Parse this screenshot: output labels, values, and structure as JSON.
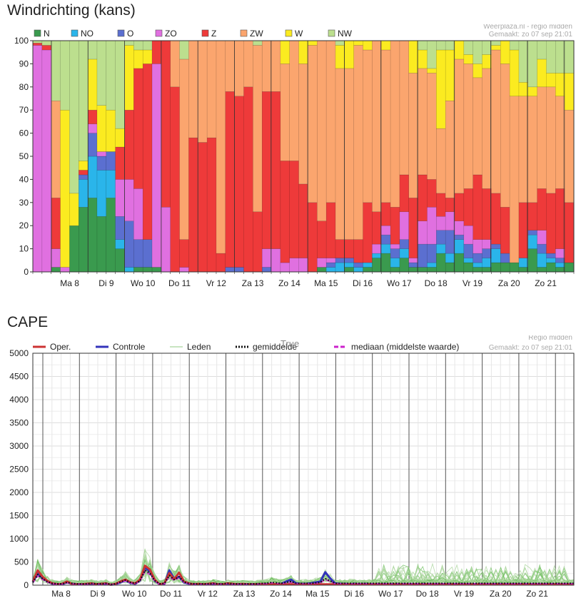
{
  "chart_data": [
    {
      "type": "bar",
      "stacked": true,
      "title": "Windrichting (kans)",
      "source": "Weerplaza.nl - regio midden",
      "made": "Gemaakt: zo 07 sep 21:01",
      "ylim": [
        0,
        100
      ],
      "yticks": [
        0,
        10,
        20,
        30,
        40,
        50,
        60,
        70,
        80,
        90,
        100
      ],
      "day_labels": [
        "Ma 8",
        "Di 9",
        "Wo 10",
        "Do 11",
        "Vr 12",
        "Za 13",
        "Zo 14",
        "Ma 15",
        "Di 16",
        "Wo 17",
        "Do 18",
        "Vr 19",
        "Za 20",
        "Zo 21"
      ],
      "legend_position": "top-left",
      "series": [
        {
          "name": "N",
          "color": "#3a9a4e"
        },
        {
          "name": "NO",
          "color": "#2ab5ea"
        },
        {
          "name": "O",
          "color": "#5b6fd0"
        },
        {
          "name": "ZO",
          "color": "#e070e0"
        },
        {
          "name": "Z",
          "color": "#ee3a3a"
        },
        {
          "name": "ZW",
          "color": "#fba56e"
        },
        {
          "name": "W",
          "color": "#fbeb20"
        },
        {
          "name": "NW",
          "color": "#bcdf8e"
        }
      ],
      "bars": [
        [
          0,
          0,
          0,
          98,
          1,
          0,
          0,
          1
        ],
        [
          0,
          0,
          0,
          96,
          2,
          0,
          0,
          2
        ],
        [
          2,
          0,
          0,
          8,
          22,
          42,
          0,
          26
        ],
        [
          0,
          0,
          0,
          2,
          0,
          0,
          68,
          30
        ],
        [
          20,
          0,
          0,
          0,
          0,
          0,
          14,
          66
        ],
        [
          28,
          12,
          2,
          0,
          2,
          0,
          4,
          52
        ],
        [
          32,
          18,
          10,
          4,
          6,
          0,
          22,
          8
        ],
        [
          24,
          20,
          6,
          2,
          0,
          0,
          20,
          28
        ],
        [
          32,
          12,
          8,
          0,
          0,
          0,
          18,
          30
        ],
        [
          10,
          4,
          10,
          16,
          14,
          0,
          8,
          38
        ],
        [
          0,
          2,
          20,
          18,
          30,
          0,
          28,
          2
        ],
        [
          2,
          0,
          12,
          22,
          52,
          0,
          8,
          4
        ],
        [
          2,
          0,
          12,
          0,
          76,
          0,
          6,
          4
        ],
        [
          2,
          0,
          0,
          88,
          10,
          0,
          0,
          0
        ],
        [
          0,
          0,
          0,
          28,
          72,
          0,
          0,
          0
        ],
        [
          0,
          0,
          0,
          0,
          80,
          20,
          0,
          0
        ],
        [
          0,
          0,
          0,
          2,
          12,
          78,
          0,
          8
        ],
        [
          0,
          0,
          0,
          0,
          58,
          42,
          0,
          0
        ],
        [
          0,
          0,
          0,
          0,
          56,
          44,
          0,
          0
        ],
        [
          0,
          0,
          0,
          0,
          58,
          42,
          0,
          0
        ],
        [
          0,
          0,
          0,
          0,
          8,
          92,
          0,
          0
        ],
        [
          0,
          0,
          2,
          0,
          76,
          22,
          0,
          0
        ],
        [
          0,
          0,
          2,
          0,
          74,
          24,
          0,
          0
        ],
        [
          0,
          0,
          0,
          0,
          80,
          20,
          0,
          0
        ],
        [
          0,
          0,
          0,
          0,
          26,
          72,
          0,
          2
        ],
        [
          0,
          0,
          2,
          8,
          68,
          22,
          0,
          0
        ],
        [
          0,
          0,
          0,
          10,
          68,
          22,
          0,
          0
        ],
        [
          0,
          0,
          0,
          4,
          44,
          42,
          10,
          0
        ],
        [
          0,
          0,
          0,
          6,
          42,
          52,
          0,
          0
        ],
        [
          0,
          0,
          0,
          6,
          32,
          52,
          10,
          0
        ],
        [
          0,
          0,
          0,
          0,
          30,
          68,
          2,
          0
        ],
        [
          2,
          0,
          0,
          4,
          16,
          78,
          0,
          0
        ],
        [
          0,
          2,
          2,
          2,
          24,
          70,
          0,
          0
        ],
        [
          0,
          4,
          2,
          0,
          8,
          74,
          10,
          2
        ],
        [
          2,
          2,
          2,
          0,
          8,
          74,
          12,
          0
        ],
        [
          0,
          2,
          2,
          0,
          10,
          84,
          2,
          0
        ],
        [
          2,
          2,
          0,
          0,
          26,
          66,
          4,
          0
        ],
        [
          6,
          2,
          0,
          4,
          14,
          74,
          0,
          0
        ],
        [
          8,
          4,
          4,
          4,
          10,
          66,
          4,
          0
        ],
        [
          2,
          4,
          4,
          2,
          16,
          72,
          0,
          0
        ],
        [
          6,
          4,
          4,
          12,
          16,
          58,
          0,
          0
        ],
        [
          2,
          0,
          2,
          2,
          26,
          54,
          14,
          0
        ],
        [
          2,
          0,
          10,
          10,
          20,
          46,
          8,
          4
        ],
        [
          2,
          2,
          8,
          16,
          12,
          46,
          2,
          12
        ],
        [
          8,
          4,
          6,
          6,
          10,
          28,
          34,
          4
        ],
        [
          4,
          4,
          10,
          8,
          6,
          42,
          22,
          4
        ],
        [
          8,
          6,
          2,
          6,
          12,
          58,
          8,
          0
        ],
        [
          4,
          2,
          6,
          8,
          16,
          54,
          4,
          6
        ],
        [
          2,
          2,
          4,
          6,
          28,
          42,
          6,
          10
        ],
        [
          2,
          4,
          4,
          4,
          22,
          52,
          6,
          6
        ],
        [
          4,
          6,
          2,
          0,
          22,
          62,
          2,
          2
        ],
        [
          4,
          0,
          4,
          0,
          20,
          62,
          10,
          0
        ],
        [
          4,
          0,
          0,
          0,
          0,
          72,
          20,
          4
        ],
        [
          2,
          4,
          0,
          0,
          24,
          46,
          6,
          18
        ],
        [
          10,
          6,
          2,
          0,
          12,
          46,
          4,
          20
        ],
        [
          2,
          6,
          4,
          6,
          18,
          44,
          12,
          8
        ],
        [
          4,
          2,
          2,
          0,
          26,
          46,
          6,
          14
        ],
        [
          2,
          2,
          2,
          4,
          26,
          40,
          10,
          14
        ],
        [
          4,
          0,
          0,
          0,
          26,
          40,
          16,
          14
        ]
      ]
    },
    {
      "type": "line",
      "title": "CAPE",
      "source": "Regio midden",
      "made": "Gemaakt: zo 07 sep 21:01",
      "ylim": [
        0,
        5000
      ],
      "yticks": [
        0,
        500,
        1000,
        1500,
        2000,
        2500,
        3000,
        3500,
        4000,
        4500,
        5000
      ],
      "day_labels": [
        "Ma 8",
        "Di 9",
        "Wo 10",
        "Do 11",
        "Vr 12",
        "Za 13",
        "Zo 14",
        "Ma 15",
        "Di 16",
        "Wo 17",
        "Do 18",
        "Vr 19",
        "Za 20",
        "Zo 21"
      ],
      "legend_position": "top",
      "legend": [
        {
          "name": "Oper.",
          "color": "#cc3333",
          "style": "solid"
        },
        {
          "name": "Controle",
          "color": "#3333bb",
          "style": "solid"
        },
        {
          "name": "Leden",
          "color": "#a8d49a",
          "style": "solid"
        },
        {
          "name": "gemiddelde",
          "color": "#111111",
          "style": "dotted"
        },
        {
          "name": "mediaan (middelste waarde)",
          "color": "#cc22cc",
          "style": "dashed"
        }
      ],
      "overlay_text": "True",
      "series": [
        {
          "name": "Oper.",
          "values": [
            80,
            320,
            180,
            90,
            40,
            20,
            30,
            80,
            30,
            20,
            20,
            30,
            40,
            20,
            30,
            40,
            10,
            30,
            80,
            120,
            60,
            40,
            120,
            420,
            340,
            120,
            20,
            40,
            260,
            130,
            270,
            80,
            40,
            20,
            30,
            20,
            30,
            40,
            20,
            20,
            40,
            30,
            20,
            30,
            20,
            20,
            20,
            30,
            20,
            30,
            20,
            20,
            20,
            20,
            20,
            20,
            20,
            20,
            20,
            20,
            20,
            20,
            20,
            20,
            20,
            20,
            20,
            20,
            20,
            20,
            20,
            20,
            20,
            20,
            20,
            20,
            20,
            20,
            20,
            20,
            20,
            20,
            20,
            20,
            20,
            20,
            20,
            20,
            20,
            20,
            20,
            20,
            20,
            20,
            20,
            20,
            20,
            20,
            20,
            20,
            20,
            20,
            20,
            20,
            20,
            20,
            20,
            20,
            20,
            20,
            20,
            20
          ]
        },
        {
          "name": "Controle",
          "values": [
            60,
            260,
            150,
            80,
            30,
            20,
            20,
            60,
            30,
            20,
            20,
            20,
            30,
            20,
            30,
            30,
            10,
            20,
            60,
            100,
            50,
            30,
            100,
            380,
            300,
            100,
            20,
            30,
            320,
            140,
            180,
            60,
            30,
            20,
            20,
            20,
            20,
            30,
            20,
            20,
            30,
            20,
            20,
            20,
            20,
            20,
            20,
            20,
            20,
            20,
            20,
            30,
            80,
            120,
            40,
            30,
            30,
            40,
            60,
            80,
            280,
            150,
            40,
            30,
            30,
            20,
            30,
            20,
            30,
            20,
            20,
            20,
            20,
            20,
            20,
            20,
            20,
            20,
            20,
            20,
            20,
            20,
            20,
            20,
            20,
            20,
            20,
            20,
            20,
            20,
            20,
            20,
            20,
            20,
            20,
            20,
            20,
            20,
            20,
            20,
            20,
            20,
            20,
            20,
            20,
            20,
            20,
            20,
            20,
            20,
            20,
            20
          ]
        },
        {
          "name": "gemiddelde",
          "values": [
            60,
            230,
            140,
            70,
            40,
            30,
            30,
            60,
            40,
            30,
            30,
            30,
            40,
            30,
            30,
            40,
            20,
            30,
            70,
            110,
            60,
            40,
            90,
            320,
            260,
            100,
            30,
            40,
            210,
            120,
            180,
            70,
            40,
            30,
            30,
            30,
            30,
            40,
            30,
            30,
            40,
            30,
            30,
            30,
            30,
            30,
            30,
            40,
            40,
            60,
            50,
            40,
            60,
            80,
            40,
            40,
            40,
            40,
            50,
            60,
            140,
            90,
            40,
            40,
            40,
            40,
            40,
            40,
            40,
            40,
            40,
            40,
            40,
            40,
            40,
            40,
            40,
            40,
            40,
            40,
            40,
            40,
            40,
            40,
            40,
            40,
            40,
            40,
            40,
            40,
            40,
            40,
            40,
            40,
            40,
            40,
            40,
            40,
            40,
            40,
            40,
            40,
            40,
            40,
            40,
            40,
            40,
            40,
            40,
            40,
            40,
            40
          ]
        },
        {
          "name": "mediaan (middelste waarde)",
          "values": [
            50,
            200,
            120,
            60,
            30,
            20,
            20,
            50,
            30,
            20,
            20,
            20,
            30,
            20,
            20,
            30,
            10,
            20,
            60,
            90,
            50,
            30,
            80,
            290,
            230,
            90,
            20,
            30,
            180,
            100,
            160,
            60,
            30,
            20,
            20,
            20,
            20,
            30,
            20,
            20,
            30,
            20,
            20,
            20,
            20,
            20,
            20,
            30,
            30,
            50,
            40,
            30,
            50,
            60,
            30,
            30,
            30,
            30,
            40,
            50,
            120,
            80,
            30,
            30,
            30,
            30,
            30,
            30,
            30,
            30,
            30,
            30,
            30,
            30,
            30,
            30,
            30,
            30,
            30,
            30,
            30,
            30,
            30,
            30,
            30,
            30,
            30,
            30,
            30,
            30,
            30,
            30,
            30,
            30,
            30,
            30,
            30,
            30,
            30,
            30,
            30,
            30,
            30,
            30,
            30,
            30,
            30,
            30,
            30,
            30,
            30,
            30
          ]
        }
      ]
    }
  ]
}
